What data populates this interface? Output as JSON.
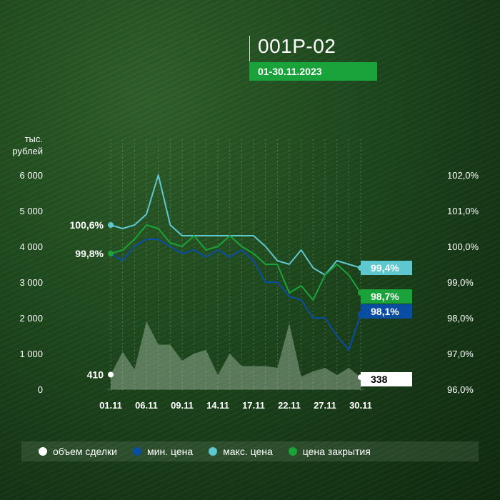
{
  "header": {
    "title": "001P-02",
    "period": "01-30.11.2023"
  },
  "colors": {
    "volume": "#ffffff",
    "min": "#0a4ea3",
    "max": "#5ec7cf",
    "close": "#1aa33a"
  },
  "legend": [
    {
      "name": "объем сделки",
      "color": "#ffffff"
    },
    {
      "name": "мин. цена",
      "color": "#0a4ea3"
    },
    {
      "name": "макс. цена",
      "color": "#5ec7cf"
    },
    {
      "name": "цена закрытия",
      "color": "#1aa33a"
    }
  ],
  "chart_data": {
    "type": "line",
    "left_axis": {
      "label": [
        "тыс.",
        "рублей"
      ],
      "min": 0,
      "max": 6000,
      "ticks": [
        "0",
        "1 000",
        "2 000",
        "3 000",
        "4 000",
        "5 000",
        "6 000"
      ]
    },
    "right_axis": {
      "min": 96.0,
      "max": 102.0,
      "ticks": [
        "96,0%",
        "97,0%",
        "98,0%",
        "99,0%",
        "100,0%",
        "101,0%",
        "102,0%"
      ]
    },
    "x_ticks": [
      "01.11",
      "06.11",
      "09.11",
      "14.11",
      "17.11",
      "22.11",
      "27.11",
      "30.11"
    ],
    "x": [
      "01.11",
      "02.11",
      "03.11",
      "06.11",
      "07.11",
      "08.11",
      "09.11",
      "10.11",
      "13.11",
      "14.11",
      "15.11",
      "16.11",
      "17.11",
      "20.11",
      "21.11",
      "22.11",
      "23.11",
      "24.11",
      "27.11",
      "28.11",
      "29.11",
      "30.11"
    ],
    "volume": [
      410,
      1050,
      550,
      1900,
      1250,
      1250,
      800,
      1000,
      1100,
      400,
      1000,
      650,
      650,
      650,
      600,
      1850,
      350,
      500,
      600,
      400,
      600,
      338
    ],
    "series": [
      {
        "name": "макс. цена",
        "key": "max",
        "values": [
          100.6,
          100.5,
          100.6,
          100.9,
          102.0,
          100.6,
          100.3,
          100.3,
          100.3,
          100.3,
          100.3,
          100.3,
          100.3,
          100.0,
          99.6,
          99.5,
          99.9,
          99.4,
          99.2,
          99.6,
          99.5,
          99.4
        ]
      },
      {
        "name": "цена закрытия",
        "key": "close",
        "values": [
          99.8,
          99.9,
          100.2,
          100.6,
          100.5,
          100.1,
          100.0,
          100.3,
          99.9,
          100.0,
          100.3,
          100.0,
          99.8,
          99.5,
          99.5,
          98.7,
          98.9,
          98.5,
          99.2,
          99.5,
          99.2,
          98.7
        ]
      },
      {
        "name": "мин. цена",
        "key": "min",
        "values": [
          99.8,
          99.6,
          100.0,
          100.2,
          100.2,
          100.0,
          99.8,
          99.9,
          99.7,
          99.9,
          99.7,
          99.9,
          99.6,
          99.0,
          99.0,
          98.6,
          98.5,
          98.0,
          98.0,
          97.5,
          97.1,
          98.1
        ]
      }
    ],
    "labels": {
      "start_max": "100,6%",
      "start_close": "99,8%",
      "start_volume": "410",
      "end_max": "99,4%",
      "end_close": "98,7%",
      "end_min": "98,1%",
      "end_volume": "338"
    }
  }
}
